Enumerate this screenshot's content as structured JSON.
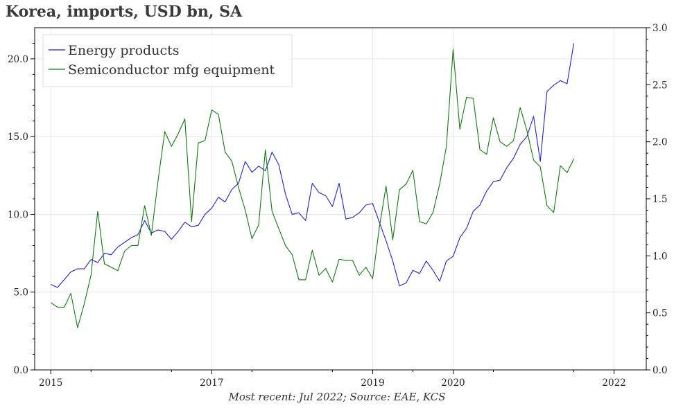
{
  "title": "Korea, imports, USD bn, SA",
  "footnote": "Most recent: Jul 2022; Source: EAE, KCS",
  "chart_data": {
    "type": "line",
    "x_start": 2015.0,
    "x_step": 0.08333,
    "xlim": [
      2014.8,
      2022.4
    ],
    "xticks": [
      2015,
      2017,
      2019,
      2020,
      2022
    ],
    "xtick_labels": [
      "2015",
      "2017",
      "2019",
      "2020",
      "2022"
    ],
    "left_axis": {
      "ylim": [
        0,
        22
      ],
      "ticks": [
        0,
        5,
        10,
        15,
        20
      ],
      "labels": [
        "0.0",
        "5.0",
        "10.0",
        "15.0",
        "20.0"
      ]
    },
    "right_axis": {
      "ylim": [
        0,
        3.0
      ],
      "ticks": [
        0,
        0.5,
        1.0,
        1.5,
        2.0,
        2.5,
        3.0
      ],
      "labels": [
        "0.0",
        "0.5",
        "1.0",
        "1.5",
        "2.0",
        "2.5",
        "3.0"
      ]
    },
    "grid": true,
    "legend_position": "top-left",
    "series": [
      {
        "name": "Energy products",
        "axis": "left",
        "color": "#1f1fd6",
        "values": [
          5.5,
          5.3,
          5.8,
          6.3,
          6.5,
          6.5,
          7.1,
          6.9,
          7.5,
          7.4,
          7.9,
          8.2,
          8.5,
          8.7,
          9.6,
          8.8,
          9.0,
          8.9,
          8.4,
          8.9,
          9.5,
          9.2,
          9.3,
          10.0,
          10.4,
          11.1,
          10.8,
          11.6,
          12.0,
          13.4,
          12.7,
          13.1,
          12.8,
          14.0,
          13.2,
          11.3,
          10.0,
          10.1,
          9.6,
          12.0,
          11.4,
          11.2,
          10.5,
          12.0,
          9.7,
          9.8,
          10.1,
          10.6,
          10.7,
          9.5,
          8.3,
          7.0,
          5.4,
          5.6,
          6.4,
          6.2,
          7.0,
          6.4,
          5.7,
          7.0,
          7.3,
          8.5,
          9.1,
          10.2,
          10.6,
          11.5,
          12.1,
          12.2,
          13.0,
          13.6,
          14.5,
          15.0,
          16.3,
          13.4,
          17.9,
          18.3,
          18.6,
          18.4,
          21.0
        ]
      },
      {
        "name": "Semiconductor mfg equipment",
        "axis": "right",
        "color": "#0f7a0f",
        "values": [
          0.59,
          0.55,
          0.55,
          0.67,
          0.37,
          0.58,
          0.83,
          1.39,
          0.93,
          0.9,
          0.87,
          1.04,
          1.09,
          1.09,
          1.44,
          1.18,
          1.66,
          2.09,
          1.96,
          2.07,
          2.2,
          1.3,
          1.99,
          2.01,
          2.28,
          2.24,
          1.91,
          1.83,
          1.6,
          1.4,
          1.15,
          1.27,
          1.93,
          1.39,
          1.24,
          1.09,
          1.01,
          0.79,
          0.79,
          1.05,
          0.83,
          0.89,
          0.77,
          0.97,
          0.96,
          0.96,
          0.83,
          0.9,
          0.8,
          1.25,
          1.61,
          1.14,
          1.58,
          1.63,
          1.75,
          1.3,
          1.28,
          1.38,
          1.63,
          1.96,
          2.81,
          2.11,
          2.39,
          2.38,
          1.93,
          1.89,
          2.21,
          2.0,
          1.96,
          2.01,
          2.3,
          2.1,
          1.84,
          1.78,
          1.44,
          1.38,
          1.79,
          1.73,
          1.85
        ]
      }
    ]
  }
}
